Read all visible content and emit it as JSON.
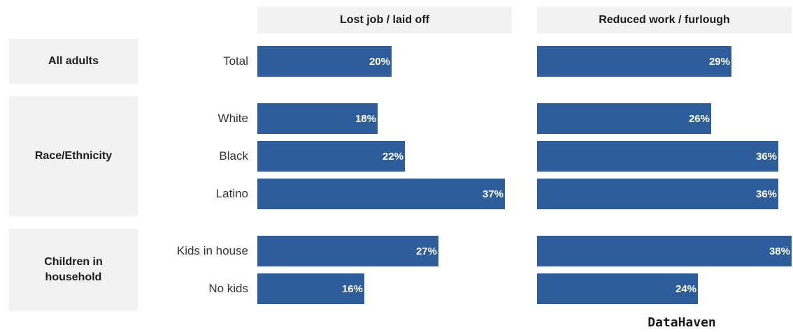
{
  "chart_data": {
    "type": "bar",
    "orientation": "horizontal",
    "panels": [
      "Lost job / laid off",
      "Reduced work / furlough"
    ],
    "groups": [
      {
        "label": "All adults",
        "rows": [
          {
            "label": "Total",
            "values": [
              20,
              29
            ]
          }
        ]
      },
      {
        "label": "Race/Ethnicity",
        "rows": [
          {
            "label": "White",
            "values": [
              18,
              26
            ]
          },
          {
            "label": "Black",
            "values": [
              22,
              36
            ]
          },
          {
            "label": "Latino",
            "values": [
              37,
              36
            ]
          }
        ]
      },
      {
        "label": "Children in household",
        "rows": [
          {
            "label": "Kids in house",
            "values": [
              27,
              38
            ]
          },
          {
            "label": "No kids",
            "values": [
              16,
              24
            ]
          }
        ]
      }
    ],
    "value_suffix": "%",
    "xlim": [
      0,
      38
    ],
    "grid": false
  },
  "source": "DataHaven",
  "colors": {
    "bar": "#2e5d9b",
    "header_bg": "#f2f2f2"
  }
}
